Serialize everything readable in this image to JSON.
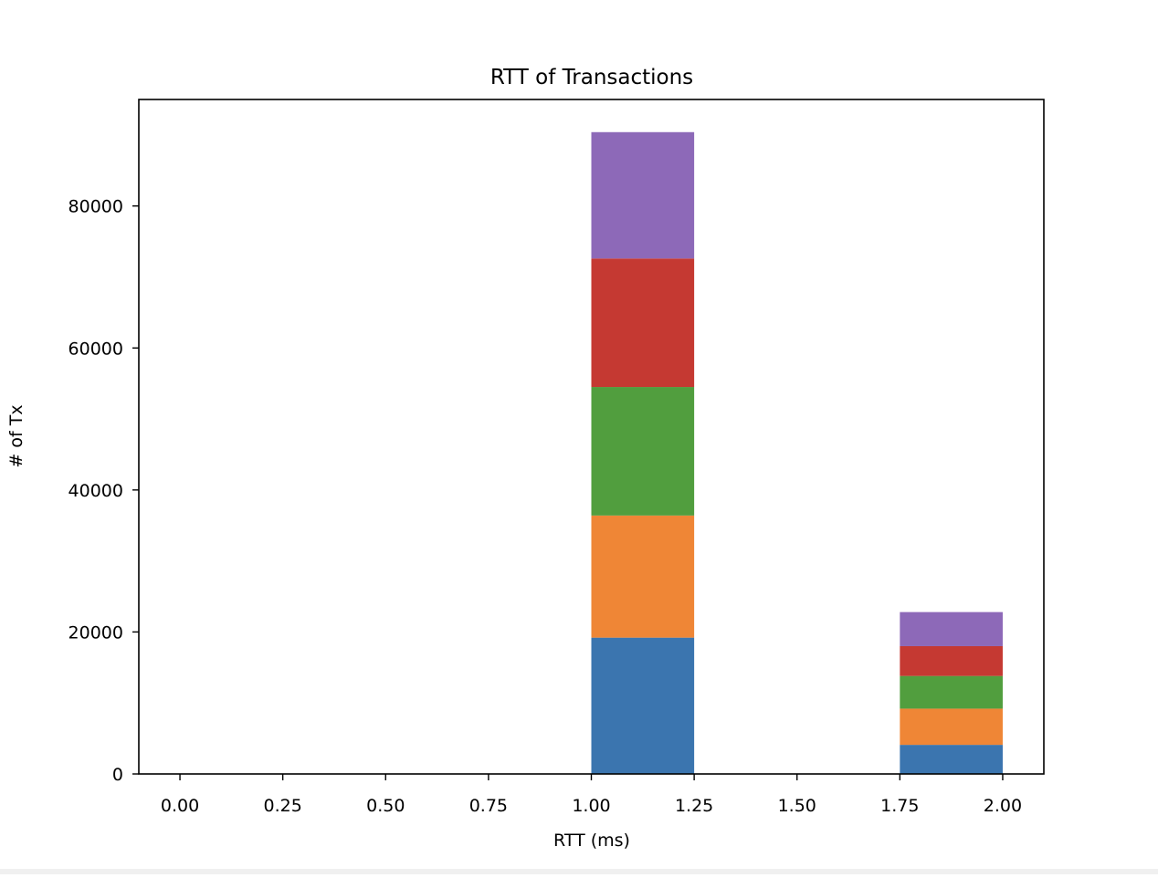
{
  "chart_data": {
    "type": "bar",
    "stacked": true,
    "title": "RTT of Transactions",
    "xlabel": "RTT (ms)",
    "ylabel": "# of Tx",
    "xlim": [
      -0.1,
      2.1
    ],
    "ylim": [
      0,
      95000
    ],
    "xticks": [
      "0.00",
      "0.25",
      "0.50",
      "0.75",
      "1.00",
      "1.25",
      "1.50",
      "1.75",
      "2.00"
    ],
    "yticks": [
      "0",
      "20000",
      "40000",
      "60000",
      "80000"
    ],
    "bins": [
      [
        1.0,
        1.25
      ],
      [
        1.75,
        2.0
      ]
    ],
    "series": [
      {
        "color": "#3b75af",
        "values": [
          19200,
          4100
        ]
      },
      {
        "color": "#ef8636",
        "values": [
          17200,
          5100
        ]
      },
      {
        "color": "#519e3e",
        "values": [
          18100,
          4600
        ]
      },
      {
        "color": "#c53932",
        "values": [
          18100,
          4200
        ]
      },
      {
        "color": "#8d69b8",
        "values": [
          17800,
          4800
        ]
      }
    ],
    "grid": false,
    "legend": "none"
  }
}
